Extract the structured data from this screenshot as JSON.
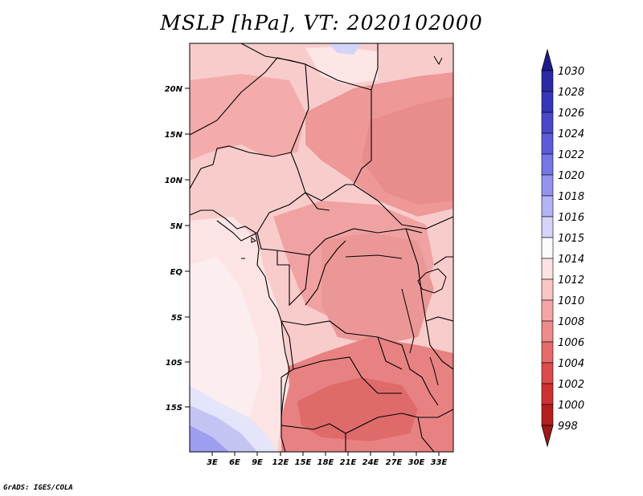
{
  "title": "MSLP [hPa], VT: 2020102000",
  "credit": "GrADS: IGES/COLA",
  "map": {
    "lat_labels": [
      "20N",
      "15N",
      "10N",
      "5N",
      "EQ",
      "5S",
      "10S",
      "15S"
    ],
    "lon_labels": [
      "3E",
      "6E",
      "9E",
      "12E",
      "15E",
      "18E",
      "21E",
      "24E",
      "27E",
      "30E",
      "33E"
    ]
  },
  "colorbar": {
    "levels": [
      "1030",
      "1028",
      "1026",
      "1024",
      "1022",
      "1020",
      "1018",
      "1016",
      "1015",
      "1014",
      "1012",
      "1010",
      "1008",
      "1006",
      "1004",
      "1002",
      "1000",
      "998"
    ],
    "colors": [
      "#1c1c8e",
      "#2a2aa4",
      "#3636b8",
      "#4848c8",
      "#5c5cd8",
      "#7676e4",
      "#9494ee",
      "#b4b4f4",
      "#d4d4f8",
      "#fafafa",
      "#fce2e2",
      "#f9c6c6",
      "#f4a6a6",
      "#ec8c8c",
      "#e46c6c",
      "#dc4c4c",
      "#cc3232",
      "#b41e1e",
      "#9e1818"
    ]
  }
}
